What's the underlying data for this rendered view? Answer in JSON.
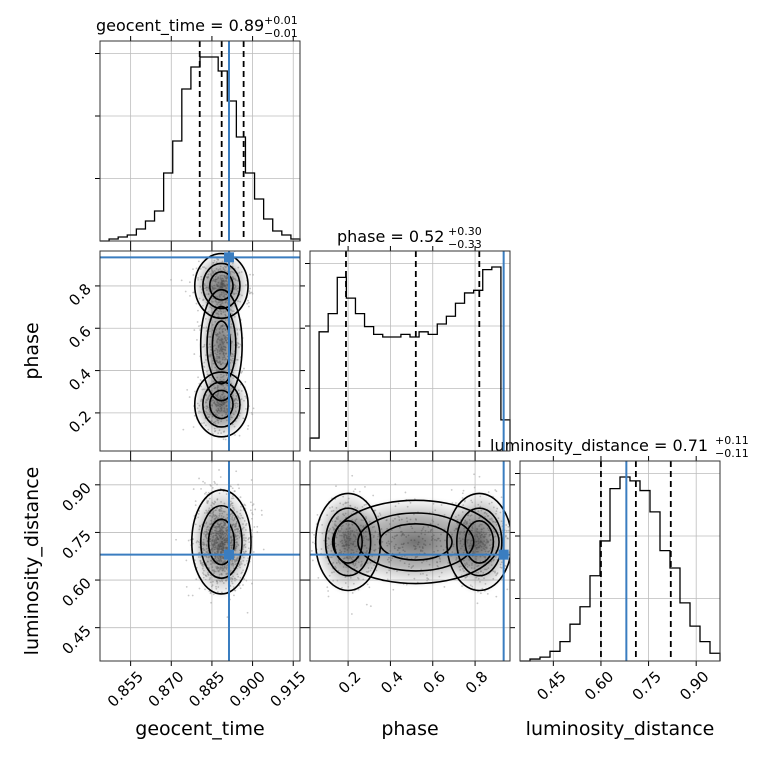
{
  "chart_data": {
    "type": "corner",
    "parameters": [
      "geocent_time",
      "phase",
      "luminosity_distance"
    ],
    "titles": [
      {
        "name": "geocent_time",
        "value": "0.89",
        "plus": "+0.01",
        "minus": "−0.01"
      },
      {
        "name": "phase",
        "value": "0.52",
        "plus": "+0.30",
        "minus": "−0.33"
      },
      {
        "name": "luminosity_distance",
        "value": "0.71",
        "plus": "+0.11",
        "minus": "−0.11"
      }
    ],
    "ranges": {
      "geocent_time": [
        0.8437,
        0.9175
      ],
      "phase": [
        0.02,
        0.965
      ],
      "luminosity_distance": [
        0.345,
        0.975
      ]
    },
    "ticks": {
      "geocent_time": [
        "0.855",
        "0.870",
        "0.885",
        "0.900",
        "0.915"
      ],
      "phase": [
        "0.2",
        "0.4",
        "0.6",
        "0.8"
      ],
      "luminosity_distance": [
        "0.45",
        "0.60",
        "0.75",
        "0.90"
      ]
    },
    "truths": {
      "geocent_time": 0.8913,
      "phase": 0.935,
      "luminosity_distance": 0.68
    },
    "quantiles": {
      "geocent_time": [
        0.8805,
        0.8886,
        0.8967
      ],
      "phase": [
        0.19,
        0.52,
        0.82
      ],
      "luminosity_distance": [
        0.6,
        0.71,
        0.82
      ]
    },
    "histograms": {
      "geocent_time": [
        0,
        1,
        2,
        3,
        6,
        10,
        15,
        34,
        50,
        76,
        87,
        92,
        92,
        85,
        70,
        52,
        34,
        21,
        11,
        5,
        3,
        1
      ],
      "phase": [
        5,
        46,
        53,
        67,
        59,
        53,
        48,
        45,
        44,
        44,
        45,
        44,
        46,
        45,
        49,
        52,
        57,
        61,
        62,
        70,
        71,
        12
      ],
      "luminosity_distance": [
        0,
        1,
        2,
        5,
        10,
        19,
        28,
        44,
        62,
        89,
        95,
        93,
        88,
        77,
        57,
        48,
        30,
        18,
        10,
        4
      ]
    },
    "grid": true
  }
}
